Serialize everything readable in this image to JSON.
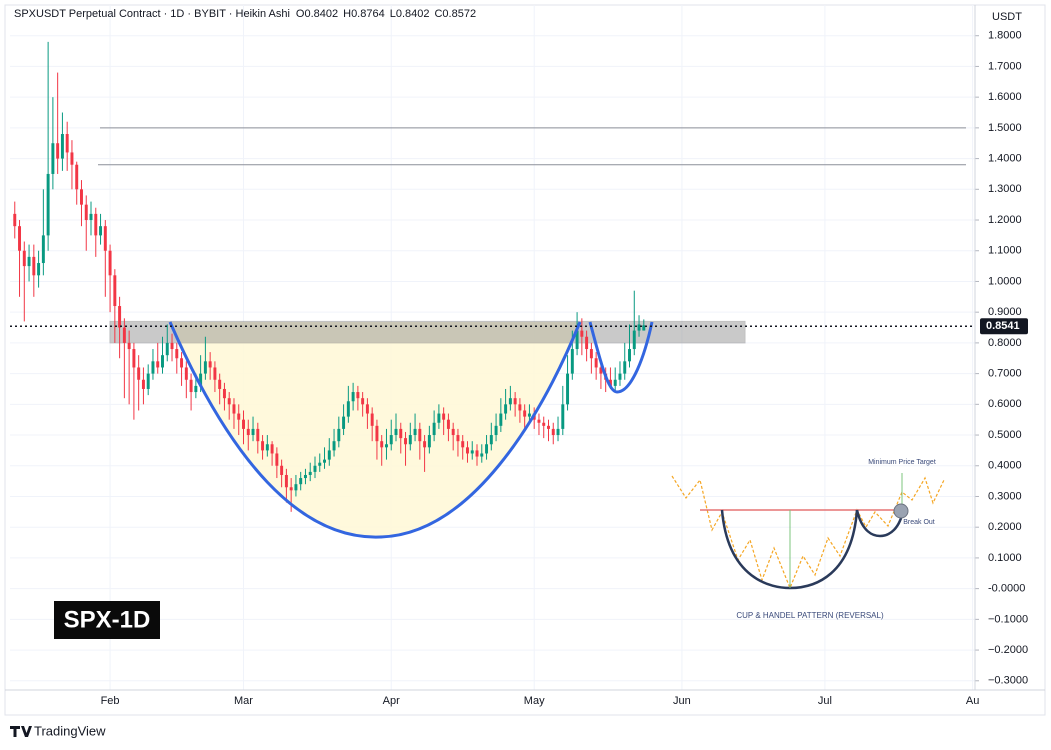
{
  "chart_data": {
    "type": "candlestick",
    "title": "SPXUSDT Perpetual Contract · 1D · BYBIT · Heikin Ashi",
    "ohlc_header": [
      "O0.8402",
      "H0.8764",
      "L0.8402",
      "C0.8572"
    ],
    "currency": "USDT",
    "badge": "SPX-1D",
    "brand": "TradingView",
    "inset": {
      "caption": "CUP & HANDEL PATTERN (REVERSAL)",
      "target": "Minimum Price Target",
      "breakout": "Break Out"
    },
    "last_price": 0.8541,
    "levels": [
      1.5,
      1.38
    ],
    "zone": [
      0.8,
      0.87
    ],
    "colors": {
      "up": "#089981",
      "down": "#f23645"
    },
    "grid": true,
    "xlim": [
      10,
      212.5
    ],
    "xticks": [
      {
        "value": 31,
        "label": "Feb"
      },
      {
        "value": 59,
        "label": "Mar"
      },
      {
        "value": 90,
        "label": "Apr"
      },
      {
        "value": 120,
        "label": "May"
      },
      {
        "value": 151,
        "label": "Jun"
      },
      {
        "value": 181,
        "label": "Jul"
      },
      {
        "value": 212,
        "label": "Au"
      }
    ],
    "ylim": [
      -0.33,
      1.9
    ],
    "yticks": [
      {
        "value": 1.8,
        "label": "1.8000"
      },
      {
        "value": 1.7,
        "label": "1.7000"
      },
      {
        "value": 1.6,
        "label": "1.6000"
      },
      {
        "value": 1.5,
        "label": "1.5000"
      },
      {
        "value": 1.4,
        "label": "1.4000"
      },
      {
        "value": 1.3,
        "label": "1.3000"
      },
      {
        "value": 1.2,
        "label": "1.2000"
      },
      {
        "value": 1.1,
        "label": "1.1000"
      },
      {
        "value": 1.0,
        "label": "1.0000"
      },
      {
        "value": 0.9,
        "label": "0.9000"
      },
      {
        "value": 0.8,
        "label": "0.8000"
      },
      {
        "value": 0.7,
        "label": "0.7000"
      },
      {
        "value": 0.6,
        "label": "0.6000"
      },
      {
        "value": 0.5,
        "label": "0.5000"
      },
      {
        "value": 0.4,
        "label": "0.4000"
      },
      {
        "value": 0.3,
        "label": "0.3000"
      },
      {
        "value": 0.2,
        "label": "0.2000"
      },
      {
        "value": 0.1,
        "label": "0.1000"
      },
      {
        "value": 0,
        "label": "-0.0000"
      },
      {
        "value": -0.1,
        "label": "−0.1000"
      },
      {
        "value": -0.2,
        "label": "−0.2000"
      },
      {
        "value": -0.3,
        "label": "−0.3000"
      }
    ],
    "x": [
      11,
      12,
      13,
      14,
      15,
      16,
      17,
      18,
      19,
      20,
      21,
      22,
      23,
      24,
      25,
      26,
      27,
      28,
      29,
      30,
      31,
      32,
      33,
      34,
      35,
      36,
      37,
      38,
      39,
      40,
      41,
      42,
      43,
      44,
      45,
      46,
      47,
      48,
      49,
      50,
      51,
      52,
      53,
      54,
      55,
      56,
      57,
      58,
      59,
      60,
      61,
      62,
      63,
      64,
      65,
      66,
      67,
      68,
      69,
      70,
      71,
      72,
      73,
      74,
      75,
      76,
      77,
      78,
      79,
      80,
      81,
      82,
      83,
      84,
      85,
      86,
      87,
      88,
      89,
      90,
      91,
      92,
      93,
      94,
      95,
      96,
      97,
      98,
      99,
      100,
      101,
      102,
      103,
      104,
      105,
      106,
      107,
      108,
      109,
      110,
      111,
      112,
      113,
      114,
      115,
      116,
      117,
      118,
      119,
      120,
      121,
      122,
      123,
      124,
      125,
      126,
      127,
      128,
      129,
      130,
      131,
      132,
      133,
      134,
      135,
      136,
      137,
      138,
      139,
      140,
      141,
      142,
      143
    ],
    "candles": [
      [
        1.22,
        1.26,
        1.14,
        1.18
      ],
      [
        1.18,
        1.2,
        0.95,
        1.1
      ],
      [
        1.1,
        1.13,
        0.87,
        1.05
      ],
      [
        1.05,
        1.12,
        1.0,
        1.08
      ],
      [
        1.08,
        1.12,
        0.95,
        1.02
      ],
      [
        1.02,
        1.1,
        0.98,
        1.06
      ],
      [
        1.06,
        1.3,
        1.02,
        1.15
      ],
      [
        1.15,
        1.78,
        1.1,
        1.35
      ],
      [
        1.35,
        1.6,
        1.3,
        1.45
      ],
      [
        1.45,
        1.68,
        1.35,
        1.4
      ],
      [
        1.4,
        1.55,
        1.36,
        1.48
      ],
      [
        1.48,
        1.52,
        1.36,
        1.42
      ],
      [
        1.42,
        1.46,
        1.3,
        1.38
      ],
      [
        1.38,
        1.39,
        1.25,
        1.3
      ],
      [
        1.3,
        1.33,
        1.18,
        1.25
      ],
      [
        1.25,
        1.28,
        1.1,
        1.2
      ],
      [
        1.2,
        1.26,
        1.15,
        1.22
      ],
      [
        1.22,
        1.24,
        1.08,
        1.15
      ],
      [
        1.15,
        1.22,
        1.12,
        1.18
      ],
      [
        1.18,
        1.2,
        0.95,
        1.1
      ],
      [
        1.1,
        1.12,
        0.9,
        1.02
      ],
      [
        1.02,
        1.04,
        0.8,
        0.92
      ],
      [
        0.92,
        0.95,
        0.75,
        0.85
      ],
      [
        0.85,
        0.88,
        0.62,
        0.8
      ],
      [
        0.8,
        0.84,
        0.6,
        0.78
      ],
      [
        0.78,
        0.8,
        0.55,
        0.72
      ],
      [
        0.72,
        0.76,
        0.58,
        0.68
      ],
      [
        0.68,
        0.72,
        0.6,
        0.65
      ],
      [
        0.65,
        0.73,
        0.63,
        0.7
      ],
      [
        0.7,
        0.78,
        0.68,
        0.74
      ],
      [
        0.74,
        0.8,
        0.7,
        0.72
      ],
      [
        0.72,
        0.82,
        0.7,
        0.76
      ],
      [
        0.76,
        0.86,
        0.74,
        0.8
      ],
      [
        0.8,
        0.83,
        0.74,
        0.78
      ],
      [
        0.78,
        0.8,
        0.7,
        0.75
      ],
      [
        0.75,
        0.77,
        0.66,
        0.72
      ],
      [
        0.72,
        0.74,
        0.62,
        0.68
      ],
      [
        0.68,
        0.7,
        0.58,
        0.64
      ],
      [
        0.64,
        0.7,
        0.62,
        0.66
      ],
      [
        0.66,
        0.76,
        0.64,
        0.7
      ],
      [
        0.7,
        0.82,
        0.68,
        0.74
      ],
      [
        0.74,
        0.77,
        0.68,
        0.72
      ],
      [
        0.72,
        0.74,
        0.64,
        0.68
      ],
      [
        0.68,
        0.7,
        0.6,
        0.65
      ],
      [
        0.65,
        0.67,
        0.58,
        0.62
      ],
      [
        0.62,
        0.64,
        0.55,
        0.6
      ],
      [
        0.6,
        0.62,
        0.52,
        0.57
      ],
      [
        0.57,
        0.6,
        0.5,
        0.55
      ],
      [
        0.55,
        0.58,
        0.47,
        0.52
      ],
      [
        0.52,
        0.55,
        0.45,
        0.5
      ],
      [
        0.5,
        0.56,
        0.48,
        0.52
      ],
      [
        0.52,
        0.54,
        0.44,
        0.48
      ],
      [
        0.48,
        0.5,
        0.42,
        0.45
      ],
      [
        0.45,
        0.5,
        0.43,
        0.47
      ],
      [
        0.47,
        0.48,
        0.4,
        0.44
      ],
      [
        0.44,
        0.46,
        0.36,
        0.4
      ],
      [
        0.4,
        0.42,
        0.33,
        0.37
      ],
      [
        0.37,
        0.39,
        0.28,
        0.33
      ],
      [
        0.33,
        0.36,
        0.25,
        0.32
      ],
      [
        0.32,
        0.37,
        0.3,
        0.34
      ],
      [
        0.34,
        0.38,
        0.32,
        0.36
      ],
      [
        0.36,
        0.39,
        0.34,
        0.37
      ],
      [
        0.37,
        0.41,
        0.35,
        0.38
      ],
      [
        0.38,
        0.43,
        0.36,
        0.4
      ],
      [
        0.4,
        0.44,
        0.38,
        0.41
      ],
      [
        0.41,
        0.46,
        0.39,
        0.42
      ],
      [
        0.42,
        0.49,
        0.4,
        0.45
      ],
      [
        0.45,
        0.52,
        0.43,
        0.48
      ],
      [
        0.48,
        0.56,
        0.46,
        0.52
      ],
      [
        0.52,
        0.6,
        0.5,
        0.56
      ],
      [
        0.56,
        0.66,
        0.54,
        0.61
      ],
      [
        0.61,
        0.67,
        0.58,
        0.64
      ],
      [
        0.64,
        0.66,
        0.58,
        0.62
      ],
      [
        0.62,
        0.64,
        0.56,
        0.6
      ],
      [
        0.6,
        0.62,
        0.52,
        0.57
      ],
      [
        0.57,
        0.59,
        0.48,
        0.53
      ],
      [
        0.53,
        0.55,
        0.42,
        0.48
      ],
      [
        0.48,
        0.5,
        0.4,
        0.46
      ],
      [
        0.46,
        0.52,
        0.42,
        0.47
      ],
      [
        0.47,
        0.55,
        0.45,
        0.5
      ],
      [
        0.5,
        0.57,
        0.48,
        0.52
      ],
      [
        0.52,
        0.54,
        0.44,
        0.49
      ],
      [
        0.49,
        0.51,
        0.4,
        0.47
      ],
      [
        0.47,
        0.54,
        0.45,
        0.5
      ],
      [
        0.5,
        0.57,
        0.48,
        0.52
      ],
      [
        0.52,
        0.54,
        0.42,
        0.48
      ],
      [
        0.48,
        0.5,
        0.38,
        0.46
      ],
      [
        0.46,
        0.53,
        0.44,
        0.5
      ],
      [
        0.5,
        0.58,
        0.48,
        0.54
      ],
      [
        0.54,
        0.6,
        0.52,
        0.57
      ],
      [
        0.57,
        0.59,
        0.5,
        0.55
      ],
      [
        0.55,
        0.57,
        0.48,
        0.52
      ],
      [
        0.52,
        0.54,
        0.45,
        0.5
      ],
      [
        0.5,
        0.52,
        0.43,
        0.48
      ],
      [
        0.48,
        0.5,
        0.42,
        0.46
      ],
      [
        0.46,
        0.48,
        0.41,
        0.44
      ],
      [
        0.44,
        0.48,
        0.42,
        0.45
      ],
      [
        0.45,
        0.47,
        0.4,
        0.43
      ],
      [
        0.43,
        0.47,
        0.41,
        0.44
      ],
      [
        0.44,
        0.5,
        0.42,
        0.47
      ],
      [
        0.47,
        0.54,
        0.45,
        0.5
      ],
      [
        0.5,
        0.57,
        0.48,
        0.53
      ],
      [
        0.53,
        0.62,
        0.51,
        0.57
      ],
      [
        0.57,
        0.65,
        0.55,
        0.6
      ],
      [
        0.6,
        0.66,
        0.58,
        0.62
      ],
      [
        0.62,
        0.64,
        0.56,
        0.6
      ],
      [
        0.6,
        0.62,
        0.54,
        0.58
      ],
      [
        0.58,
        0.6,
        0.52,
        0.56
      ],
      [
        0.56,
        0.6,
        0.54,
        0.57
      ],
      [
        0.57,
        0.59,
        0.52,
        0.55
      ],
      [
        0.55,
        0.57,
        0.5,
        0.54
      ],
      [
        0.54,
        0.56,
        0.49,
        0.53
      ],
      [
        0.53,
        0.55,
        0.48,
        0.52
      ],
      [
        0.52,
        0.54,
        0.47,
        0.5
      ],
      [
        0.5,
        0.56,
        0.48,
        0.52
      ],
      [
        0.52,
        0.66,
        0.5,
        0.6
      ],
      [
        0.6,
        0.76,
        0.58,
        0.7
      ],
      [
        0.7,
        0.84,
        0.68,
        0.78
      ],
      [
        0.78,
        0.9,
        0.76,
        0.84
      ],
      [
        0.84,
        0.88,
        0.76,
        0.82
      ],
      [
        0.82,
        0.84,
        0.74,
        0.78
      ],
      [
        0.78,
        0.8,
        0.7,
        0.75
      ],
      [
        0.75,
        0.77,
        0.68,
        0.72
      ],
      [
        0.72,
        0.74,
        0.65,
        0.7
      ],
      [
        0.7,
        0.72,
        0.64,
        0.68
      ],
      [
        0.68,
        0.72,
        0.65,
        0.66
      ],
      [
        0.66,
        0.72,
        0.64,
        0.68
      ],
      [
        0.68,
        0.74,
        0.66,
        0.7
      ],
      [
        0.7,
        0.8,
        0.68,
        0.74
      ],
      [
        0.74,
        0.86,
        0.72,
        0.78
      ],
      [
        0.78,
        0.97,
        0.76,
        0.84
      ],
      [
        0.84,
        0.89,
        0.82,
        0.86
      ],
      [
        0.8402,
        0.8764,
        0.8402,
        0.8572
      ]
    ]
  }
}
